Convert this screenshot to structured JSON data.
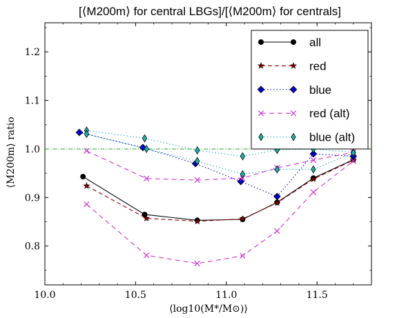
{
  "chart_data": {
    "type": "line",
    "title": "[⟨M200m⟩ for central LBGs]/[⟨M200m⟩ for centrals]",
    "xlabel": "⟨log10(M*/M⊙)⟩",
    "ylabel": "⟨M200m⟩ ratio",
    "xlim": [
      10.0,
      11.8
    ],
    "ylim": [
      0.72,
      1.26
    ],
    "xticks": [
      "10.0",
      "10.5",
      "11.0",
      "11.5"
    ],
    "yticks": [
      "0.8",
      "0.9",
      "1.0",
      "1.1",
      "1.2"
    ],
    "xtick_values": [
      10.0,
      10.5,
      11.0,
      11.5
    ],
    "ytick_values": [
      0.8,
      0.9,
      1.0,
      1.1,
      1.2
    ],
    "reference_line": {
      "y": 1.0,
      "color": "#2ca02c",
      "style": "dash-dot"
    },
    "legend_position": "top-right",
    "series": [
      {
        "name": "all",
        "color": "#000000",
        "dash": "none",
        "marker": "circle",
        "x": [
          10.21,
          10.55,
          10.84,
          11.09,
          11.28,
          11.48,
          11.7
        ],
        "y": [
          0.943,
          0.865,
          0.853,
          0.855,
          0.89,
          0.94,
          0.978
        ]
      },
      {
        "name": "red",
        "color": "#8b0000",
        "dash": "6,4",
        "marker": "star",
        "x": [
          10.23,
          10.56,
          10.84,
          11.09,
          11.28,
          11.48,
          11.7
        ],
        "y": [
          0.924,
          0.857,
          0.851,
          0.856,
          0.889,
          0.938,
          0.977
        ]
      },
      {
        "name": "blue",
        "color": "#0000cc",
        "dash": "1.5,3",
        "marker": "diamond",
        "x": [
          10.19,
          10.54,
          10.83,
          11.08,
          11.28,
          11.48,
          11.7
        ],
        "y": [
          1.034,
          1.003,
          0.97,
          0.933,
          0.902,
          0.99,
          0.985
        ]
      },
      {
        "name": "red (alt)",
        "color": "#cc33cc",
        "dash": "7,5",
        "marker": "x",
        "x": [
          10.23,
          10.56,
          10.84,
          11.09,
          11.28,
          11.48,
          11.7
        ],
        "y": [
          0.996,
          0.939,
          0.936,
          0.94,
          0.961,
          0.977,
          0.993
        ]
      },
      {
        "name": "blue (alt)",
        "color": "#20b2aa",
        "dash": "1.5,3",
        "marker": "thin-diamond",
        "x": [
          10.23,
          10.55,
          10.84,
          11.09,
          11.28,
          11.48,
          11.7
        ],
        "y": [
          1.038,
          1.022,
          0.997,
          0.985,
          0.998,
          1.0,
          0.993
        ]
      },
      {
        "name": "",
        "color": "#cc33cc",
        "dash": "7,5",
        "marker": "x",
        "x": [
          10.23,
          10.56,
          10.84,
          11.09,
          11.28,
          11.48,
          11.7
        ],
        "y": [
          0.886,
          0.781,
          0.764,
          0.78,
          0.831,
          0.911,
          0.975
        ]
      },
      {
        "name": "",
        "color": "#20b2aa",
        "dash": "1.5,3",
        "marker": "thin-diamond",
        "x": [
          10.23,
          10.56,
          10.84,
          11.09,
          11.28,
          11.48,
          11.7
        ],
        "y": [
          1.031,
          1.0,
          0.975,
          0.948,
          0.958,
          0.958,
          0.992
        ]
      }
    ]
  }
}
